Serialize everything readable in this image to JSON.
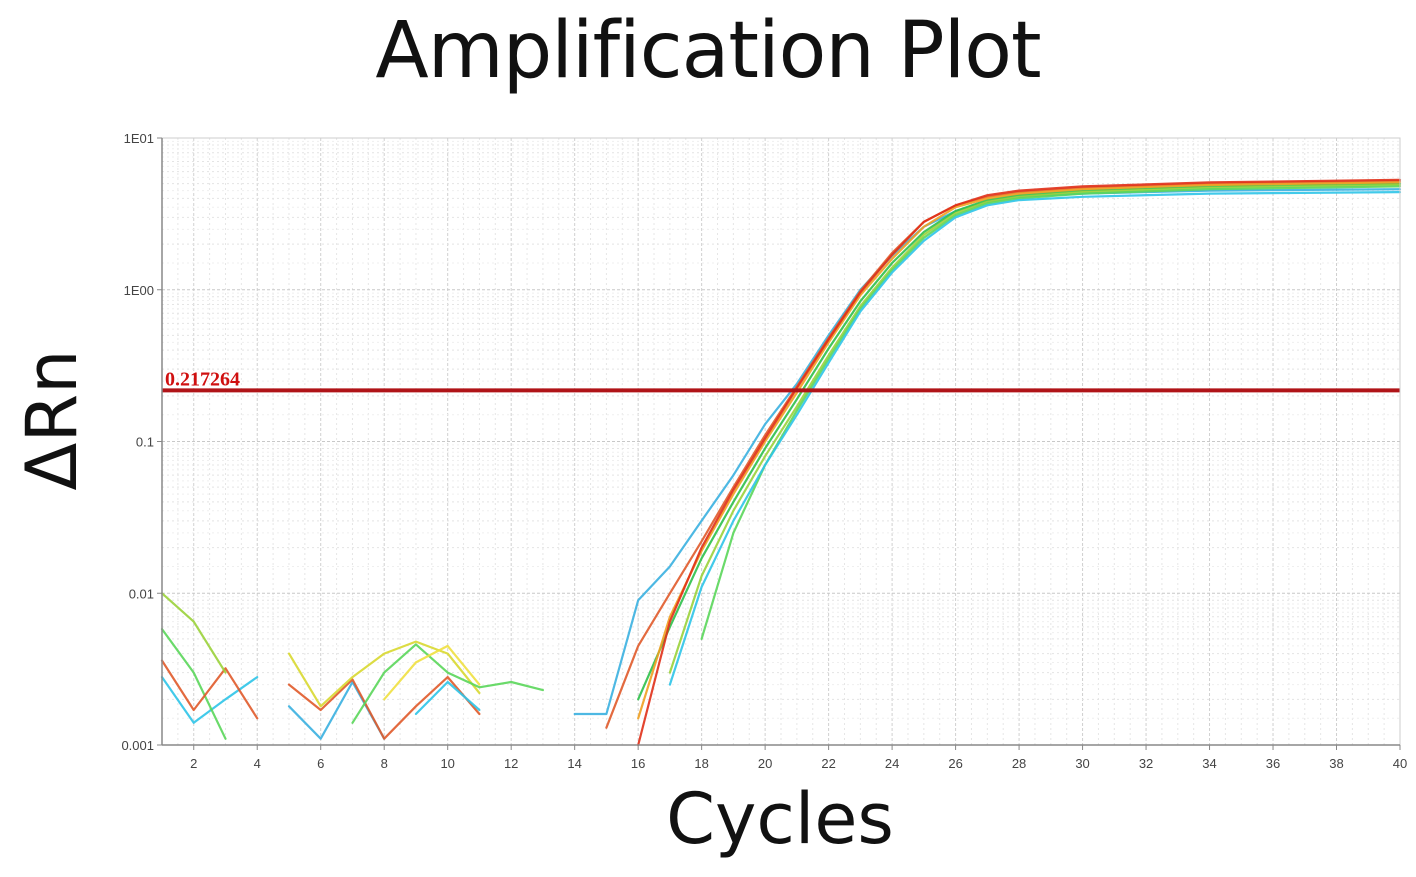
{
  "chart_data": {
    "type": "line",
    "title": "Amplification Plot",
    "xlabel": "Cycles",
    "ylabel": "ΔRn",
    "y_scale": "log",
    "xlim": [
      1,
      40
    ],
    "ylim": [
      0.001,
      10
    ],
    "grid": true,
    "x_ticks": [
      "2",
      "4",
      "6",
      "8",
      "10",
      "12",
      "14",
      "16",
      "18",
      "20",
      "22",
      "24",
      "26",
      "28",
      "30",
      "32",
      "34",
      "36",
      "38",
      "40"
    ],
    "y_ticks": [
      {
        "value": 0.001,
        "label": "0.001"
      },
      {
        "value": 0.01,
        "label": "0.01"
      },
      {
        "value": 0.1,
        "label": "0.1"
      },
      {
        "value": 1,
        "label": "1E00"
      },
      {
        "value": 10,
        "label": "1E01"
      }
    ],
    "threshold": {
      "value": 0.217264,
      "label": "0.217264",
      "color": "#b01418"
    },
    "series": [
      {
        "color": "#2ec4e8",
        "values": [
          [
            1,
            0.0028
          ],
          [
            2,
            0.0014
          ],
          [
            3,
            0.002
          ],
          [
            4,
            0.0028
          ]
        ]
      },
      {
        "color": "#5ad65a",
        "values": [
          [
            1,
            0.0058
          ],
          [
            2,
            0.003
          ],
          [
            3,
            0.0011
          ]
        ]
      },
      {
        "color": "#e05a2a",
        "values": [
          [
            1,
            0.0036
          ],
          [
            2,
            0.0017
          ],
          [
            3,
            0.0032
          ],
          [
            4,
            0.0015
          ]
        ]
      },
      {
        "color": "#9ad23a",
        "values": [
          [
            1,
            0.01
          ],
          [
            2,
            0.0065
          ],
          [
            3,
            0.003
          ]
        ]
      },
      {
        "color": "#3ab0e0",
        "values": [
          [
            5,
            0.0018
          ],
          [
            6,
            0.0011
          ],
          [
            7,
            0.0026
          ],
          [
            8,
            0.0011
          ]
        ]
      },
      {
        "color": "#e05a2a",
        "values": [
          [
            5,
            0.0025
          ],
          [
            6,
            0.0017
          ],
          [
            7,
            0.0027
          ],
          [
            8,
            0.0011
          ],
          [
            9,
            0.0018
          ],
          [
            10,
            0.0028
          ],
          [
            11,
            0.0016
          ]
        ]
      },
      {
        "color": "#d8d830",
        "values": [
          [
            5,
            0.004
          ],
          [
            6,
            0.0018
          ],
          [
            7,
            0.0028
          ],
          [
            8,
            0.004
          ],
          [
            9,
            0.0048
          ],
          [
            10,
            0.004
          ],
          [
            11,
            0.0022
          ]
        ]
      },
      {
        "color": "#5ad65a",
        "values": [
          [
            7,
            0.0014
          ],
          [
            8,
            0.003
          ],
          [
            9,
            0.0046
          ],
          [
            10,
            0.003
          ],
          [
            11,
            0.0024
          ],
          [
            12,
            0.0026
          ],
          [
            13,
            0.0023
          ]
        ]
      },
      {
        "color": "#2ec4e8",
        "values": [
          [
            9,
            0.0016
          ],
          [
            10,
            0.0026
          ],
          [
            11,
            0.0017
          ]
        ]
      },
      {
        "color": "#f0e040",
        "values": [
          [
            8,
            0.002
          ],
          [
            9,
            0.0035
          ],
          [
            10,
            0.0045
          ],
          [
            11,
            0.0025
          ]
        ]
      },
      {
        "color": "#3ab0e0",
        "values": [
          [
            14,
            0.0016
          ],
          [
            15,
            0.0016
          ],
          [
            16,
            0.009
          ],
          [
            17,
            0.015
          ],
          [
            18,
            0.03
          ],
          [
            19,
            0.06
          ],
          [
            20,
            0.13
          ],
          [
            21,
            0.24
          ],
          [
            22,
            0.5
          ],
          [
            23,
            1.0
          ],
          [
            24,
            1.68
          ],
          [
            25,
            2.6
          ],
          [
            26,
            3.3
          ],
          [
            27,
            3.8
          ],
          [
            28,
            4.1
          ],
          [
            30,
            4.3
          ],
          [
            34,
            4.5
          ],
          [
            40,
            4.6
          ]
        ]
      },
      {
        "color": "#e05a2a",
        "values": [
          [
            15,
            0.0013
          ],
          [
            16,
            0.0045
          ],
          [
            17,
            0.01
          ],
          [
            18,
            0.022
          ],
          [
            19,
            0.05
          ],
          [
            20,
            0.11
          ],
          [
            21,
            0.23
          ],
          [
            22,
            0.48
          ],
          [
            23,
            0.98
          ],
          [
            24,
            1.75
          ],
          [
            25,
            2.8
          ],
          [
            26,
            3.6
          ],
          [
            27,
            4.1
          ],
          [
            28,
            4.4
          ],
          [
            30,
            4.7
          ],
          [
            34,
            5.0
          ],
          [
            40,
            5.2
          ]
        ]
      },
      {
        "color": "#2ec04a",
        "values": [
          [
            16,
            0.002
          ],
          [
            17,
            0.006
          ],
          [
            18,
            0.017
          ],
          [
            19,
            0.04
          ],
          [
            20,
            0.09
          ],
          [
            21,
            0.19
          ],
          [
            22,
            0.41
          ],
          [
            23,
            0.84
          ],
          [
            24,
            1.5
          ],
          [
            25,
            2.4
          ],
          [
            26,
            3.3
          ],
          [
            27,
            3.9
          ],
          [
            28,
            4.2
          ],
          [
            30,
            4.5
          ],
          [
            34,
            4.8
          ],
          [
            40,
            5.0
          ]
        ]
      },
      {
        "color": "#9ad23a",
        "values": [
          [
            17,
            0.003
          ],
          [
            18,
            0.013
          ],
          [
            19,
            0.035
          ],
          [
            20,
            0.08
          ],
          [
            21,
            0.17
          ],
          [
            22,
            0.37
          ],
          [
            23,
            0.78
          ],
          [
            24,
            1.4
          ],
          [
            25,
            2.3
          ],
          [
            26,
            3.2
          ],
          [
            27,
            3.8
          ],
          [
            28,
            4.1
          ],
          [
            30,
            4.4
          ],
          [
            34,
            4.7
          ],
          [
            40,
            4.9
          ]
        ]
      },
      {
        "color": "#f0a020",
        "values": [
          [
            16,
            0.0015
          ],
          [
            17,
            0.007
          ],
          [
            18,
            0.019
          ],
          [
            19,
            0.045
          ],
          [
            20,
            0.1
          ],
          [
            21,
            0.21
          ],
          [
            22,
            0.45
          ],
          [
            23,
            0.92
          ],
          [
            24,
            1.6
          ],
          [
            25,
            2.6
          ],
          [
            26,
            3.5
          ],
          [
            27,
            4.0
          ],
          [
            28,
            4.3
          ],
          [
            30,
            4.6
          ],
          [
            34,
            4.9
          ],
          [
            40,
            5.1
          ]
        ]
      },
      {
        "color": "#e03018",
        "values": [
          [
            16,
            0.001
          ],
          [
            17,
            0.0065
          ],
          [
            18,
            0.02
          ],
          [
            19,
            0.048
          ],
          [
            20,
            0.105
          ],
          [
            21,
            0.225
          ],
          [
            22,
            0.47
          ],
          [
            23,
            0.96
          ],
          [
            24,
            1.7
          ],
          [
            25,
            2.8
          ],
          [
            26,
            3.6
          ],
          [
            27,
            4.2
          ],
          [
            28,
            4.5
          ],
          [
            30,
            4.8
          ],
          [
            34,
            5.1
          ],
          [
            40,
            5.3
          ]
        ]
      },
      {
        "color": "#5ad65a",
        "values": [
          [
            18,
            0.005
          ],
          [
            19,
            0.025
          ],
          [
            20,
            0.07
          ],
          [
            21,
            0.16
          ],
          [
            22,
            0.35
          ],
          [
            23,
            0.75
          ],
          [
            24,
            1.35
          ],
          [
            25,
            2.2
          ],
          [
            26,
            3.1
          ],
          [
            27,
            3.7
          ],
          [
            28,
            4.0
          ],
          [
            30,
            4.3
          ],
          [
            34,
            4.6
          ],
          [
            40,
            4.8
          ]
        ]
      },
      {
        "color": "#2ec4e8",
        "values": [
          [
            17,
            0.0025
          ],
          [
            18,
            0.011
          ],
          [
            19,
            0.03
          ],
          [
            20,
            0.07
          ],
          [
            21,
            0.15
          ],
          [
            22,
            0.33
          ],
          [
            23,
            0.72
          ],
          [
            24,
            1.3
          ],
          [
            25,
            2.1
          ],
          [
            26,
            3.0
          ],
          [
            27,
            3.6
          ],
          [
            28,
            3.9
          ],
          [
            30,
            4.1
          ],
          [
            34,
            4.3
          ],
          [
            40,
            4.4
          ]
        ]
      }
    ]
  }
}
